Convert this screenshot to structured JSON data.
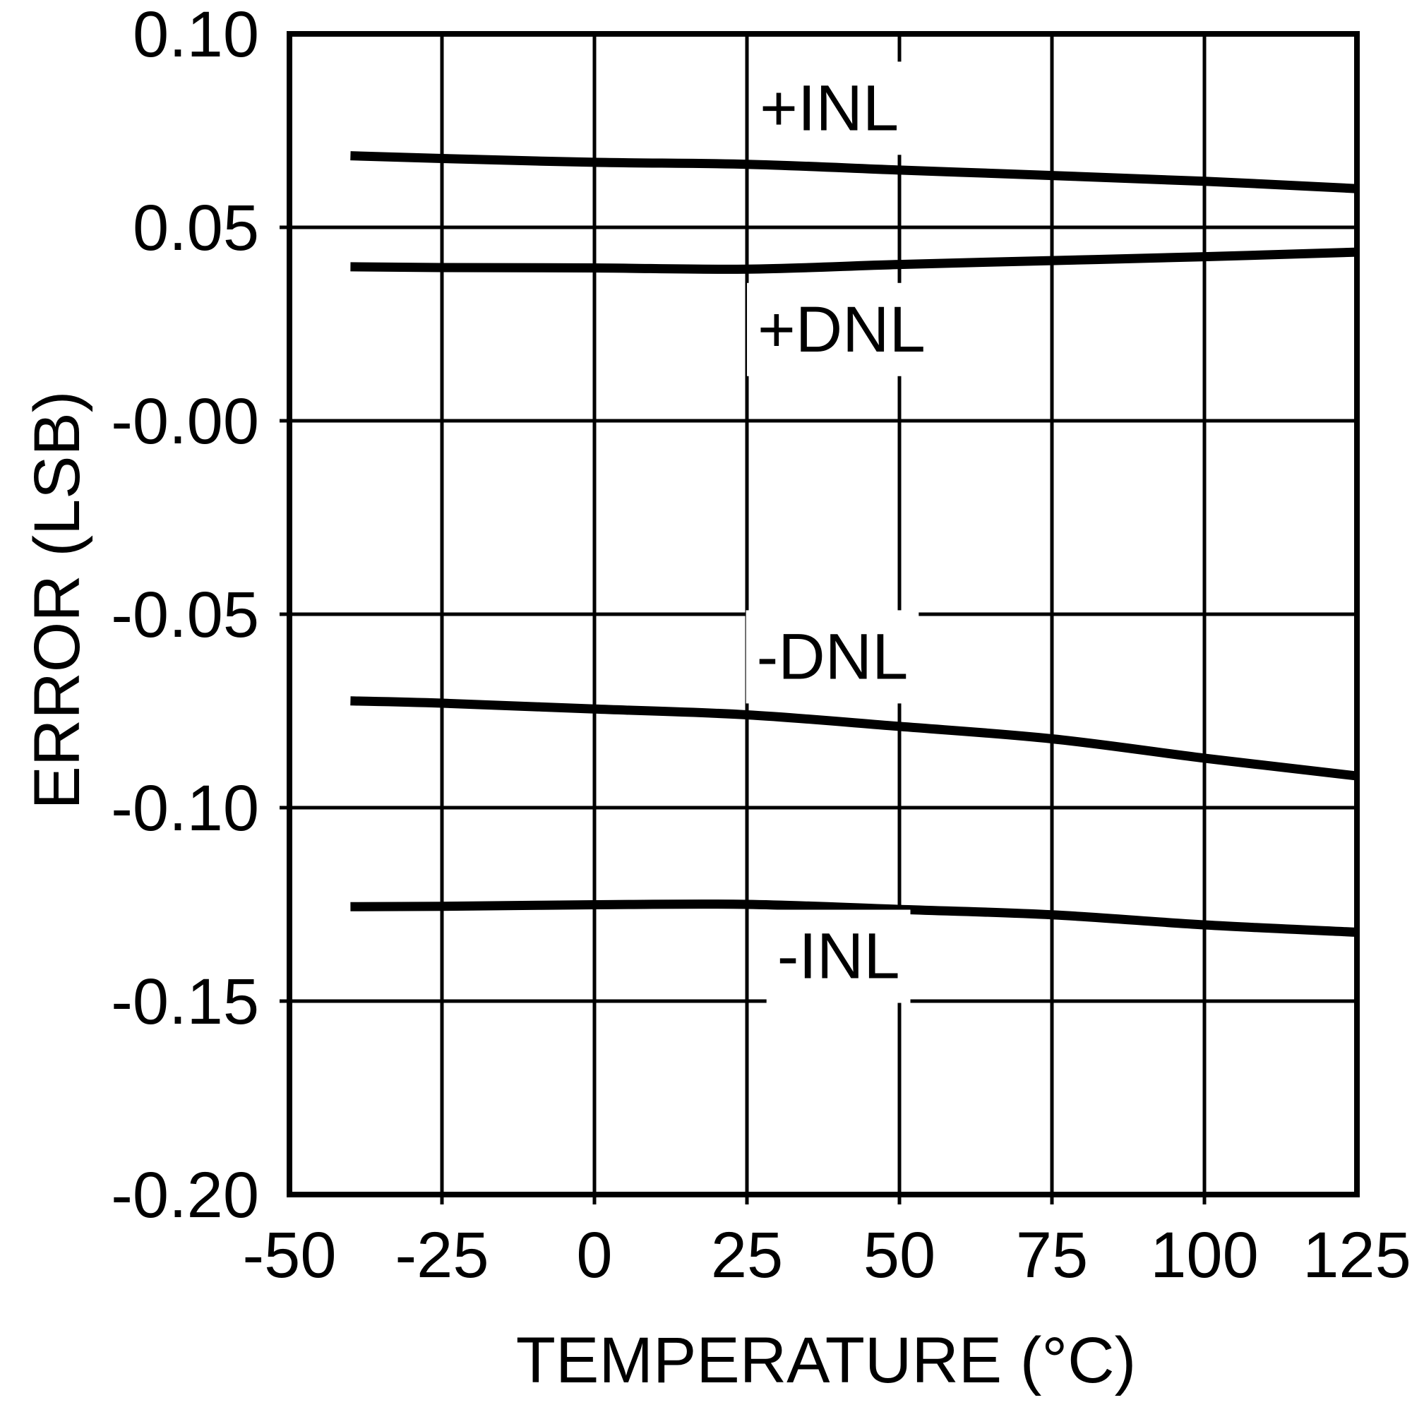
{
  "figure": {
    "background": "#ffffff",
    "ink_color": "#000000"
  },
  "chart_data": {
    "type": "line",
    "title": "",
    "xlabel": "TEMPERATURE (°C)",
    "ylabel": "ERROR (LSB)",
    "xlim": [
      -50,
      125
    ],
    "ylim": [
      -0.2,
      0.1
    ],
    "grid": "on",
    "legend_position": "inline-labels",
    "x_ticks": [
      {
        "label": "-50",
        "value": -50
      },
      {
        "label": "-25",
        "value": -25
      },
      {
        "label": "0",
        "value": 0
      },
      {
        "label": "25",
        "value": 25
      },
      {
        "label": "50",
        "value": 50
      },
      {
        "label": "75",
        "value": 75
      },
      {
        "label": "100",
        "value": 100
      },
      {
        "label": "125",
        "value": 125
      }
    ],
    "y_ticks": [
      {
        "label": "0.10",
        "value": 0.1
      },
      {
        "label": "0.05",
        "value": 0.05
      },
      {
        "label": "-0.00",
        "value": 0.0
      },
      {
        "label": "-0.05",
        "value": -0.05
      },
      {
        "label": "-0.10",
        "value": -0.1
      },
      {
        "label": "-0.15",
        "value": -0.15
      },
      {
        "label": "-0.20",
        "value": -0.2
      }
    ],
    "x": [
      -40,
      -25,
      0,
      25,
      50,
      75,
      100,
      125
    ],
    "series": [
      {
        "name": "+INL",
        "values": [
          0.0685,
          0.0678,
          0.0668,
          0.0663,
          0.0648,
          0.0634,
          0.0619,
          0.06
        ]
      },
      {
        "name": "+DNL",
        "values": [
          0.0398,
          0.0396,
          0.0395,
          0.0392,
          0.0404,
          0.0414,
          0.0424,
          0.0436
        ]
      },
      {
        "name": "-DNL",
        "values": [
          -0.0724,
          -0.073,
          -0.0745,
          -0.076,
          -0.079,
          -0.0822,
          -0.0872,
          -0.0918
        ]
      },
      {
        "name": "-INL",
        "values": [
          -0.1256,
          -0.1255,
          -0.1251,
          -0.125,
          -0.1263,
          -0.1277,
          -0.1303,
          -0.1322
        ]
      }
    ],
    "annotations": [
      {
        "text": "+INL",
        "x": 38.5,
        "y": 0.081
      },
      {
        "text": "+DNL",
        "x": 40.5,
        "y": 0.0238
      },
      {
        "text": "-DNL",
        "x": 39.0,
        "y": -0.0608
      },
      {
        "text": "-INL",
        "x": 40.0,
        "y": -0.1382
      }
    ]
  }
}
